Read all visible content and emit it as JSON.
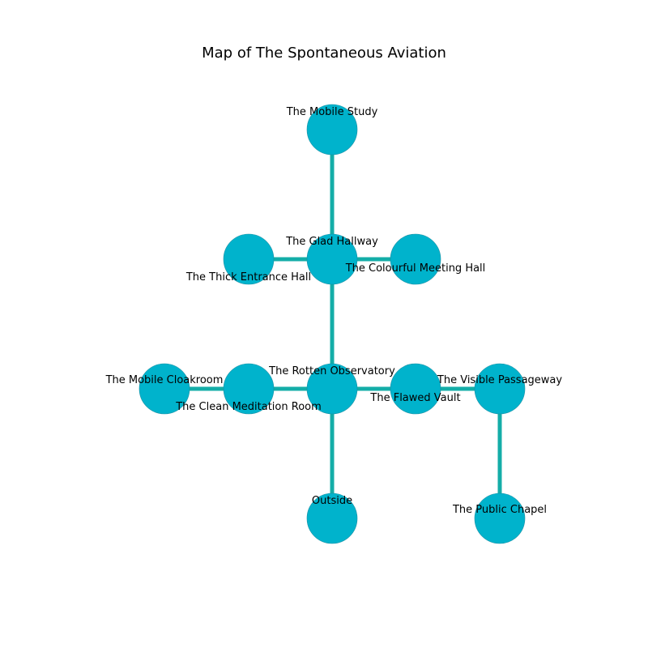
{
  "title": "Map of The Spontaneous Aviation",
  "colors": {
    "node": "#00b3cc",
    "node_stroke": "#1a8fa3",
    "edge": "#14ada8"
  },
  "nodes": [
    {
      "id": "mobile_study",
      "label": "The Mobile Study"
    },
    {
      "id": "glad_hallway",
      "label": "The Glad Hallway"
    },
    {
      "id": "thick_entrance_hall",
      "label": "The Thick Entrance Hall"
    },
    {
      "id": "colourful_meeting_hall",
      "label": "The Colourful Meeting Hall"
    },
    {
      "id": "rotten_observatory",
      "label": "The Rotten Observatory"
    },
    {
      "id": "mobile_cloakroom",
      "label": "The Mobile Cloakroom"
    },
    {
      "id": "clean_meditation_room",
      "label": "The Clean Meditation Room"
    },
    {
      "id": "flawed_vault",
      "label": "The Flawed Vault"
    },
    {
      "id": "visible_passageway",
      "label": "The Visible Passageway"
    },
    {
      "id": "outside",
      "label": "Outside"
    },
    {
      "id": "public_chapel",
      "label": "The Public Chapel"
    }
  ],
  "edges": [
    [
      "mobile_study",
      "glad_hallway"
    ],
    [
      "thick_entrance_hall",
      "glad_hallway"
    ],
    [
      "glad_hallway",
      "colourful_meeting_hall"
    ],
    [
      "glad_hallway",
      "rotten_observatory"
    ],
    [
      "mobile_cloakroom",
      "clean_meditation_room"
    ],
    [
      "clean_meditation_room",
      "rotten_observatory"
    ],
    [
      "rotten_observatory",
      "flawed_vault"
    ],
    [
      "flawed_vault",
      "visible_passageway"
    ],
    [
      "rotten_observatory",
      "outside"
    ],
    [
      "visible_passageway",
      "public_chapel"
    ]
  ]
}
